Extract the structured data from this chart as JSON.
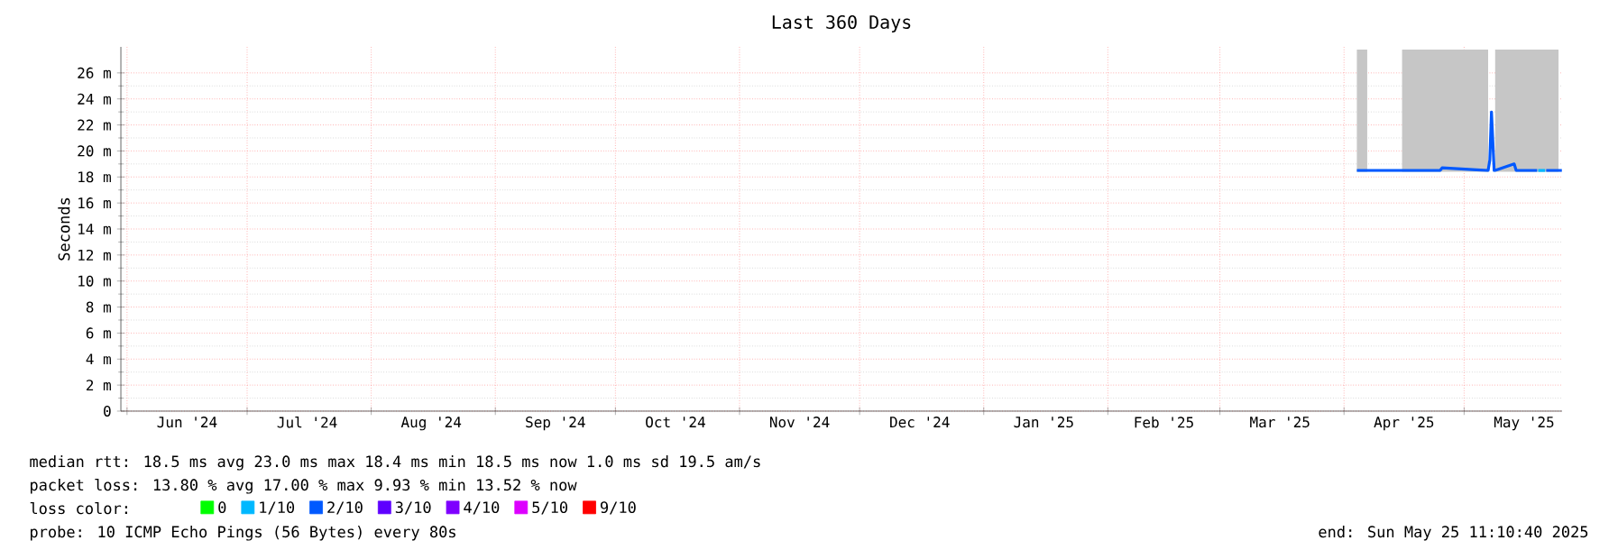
{
  "chart_data": {
    "type": "line",
    "title": "Last 360 Days",
    "ylabel": "Seconds",
    "xlim": [
      "2024-05-30T11:10",
      "2025-05-25T11:10"
    ],
    "ylim": [
      0,
      28
    ],
    "xticks": [
      {
        "value": "2024-06-01",
        "label": null
      },
      {
        "value": "2024-06-16",
        "label": "Jun '24"
      },
      {
        "value": "2024-07-01",
        "label": null
      },
      {
        "value": "2024-07-16",
        "label": "Jul '24"
      },
      {
        "value": "2024-08-01",
        "label": null
      },
      {
        "value": "2024-08-16",
        "label": "Aug '24"
      },
      {
        "value": "2024-09-01",
        "label": null
      },
      {
        "value": "2024-09-16",
        "label": "Sep '24"
      },
      {
        "value": "2024-10-01",
        "label": null
      },
      {
        "value": "2024-10-16",
        "label": "Oct '24"
      },
      {
        "value": "2024-11-01",
        "label": null
      },
      {
        "value": "2024-11-16",
        "label": "Nov '24"
      },
      {
        "value": "2024-12-01",
        "label": null
      },
      {
        "value": "2024-12-16",
        "label": "Dec '24"
      },
      {
        "value": "2025-01-01",
        "label": null
      },
      {
        "value": "2025-01-16",
        "label": "Jan '25"
      },
      {
        "value": "2025-02-01",
        "label": null
      },
      {
        "value": "2025-02-15",
        "label": "Feb '25"
      },
      {
        "value": "2025-03-01",
        "label": null
      },
      {
        "value": "2025-03-16",
        "label": "Mar '25"
      },
      {
        "value": "2025-04-01",
        "label": null
      },
      {
        "value": "2025-04-16",
        "label": "Apr '25"
      },
      {
        "value": "2025-05-01",
        "label": null
      },
      {
        "value": "2025-05-16",
        "label": "May '25"
      }
    ],
    "yticks": [
      0,
      {
        "value": 2,
        "label": "2 m"
      },
      {
        "value": 4,
        "label": "4 m"
      },
      {
        "value": 6,
        "label": "6 m"
      },
      {
        "value": 8,
        "label": "8 m"
      },
      {
        "value": 10,
        "label": "10 m"
      },
      {
        "value": 12,
        "label": "12 m"
      },
      {
        "value": 14,
        "label": "14 m"
      },
      {
        "value": 16,
        "label": "16 m"
      },
      {
        "value": 18,
        "label": "18 m"
      },
      {
        "value": 20,
        "label": "20 m"
      },
      {
        "value": 22,
        "label": "22 m"
      },
      {
        "value": 24,
        "label": "24 m"
      },
      {
        "value": 26,
        "label": "26 m"
      }
    ],
    "grid": true,
    "legend": "bottom",
    "legend_title": "loss color:",
    "series": [
      {
        "name": "0",
        "color": "#00ff00"
      },
      {
        "name": "1/10",
        "color": "#00b8ff",
        "x": [
          "2025-05-19T12:00",
          "2025-05-21T06:00"
        ],
        "values": [
          18.5,
          18.5
        ]
      },
      {
        "name": "2/10",
        "color": "#0059ff",
        "x": [
          "2025-04-04T05:00",
          "2025-04-06T19:00",
          "2025-04-07T00:00",
          "2025-04-15T12:00",
          "2025-04-25T00:00",
          "2025-04-25T12:00",
          "2025-05-07T00:00",
          "2025-05-07T10:00",
          "2025-05-07T20:00",
          "2025-05-08T12:00",
          "2025-05-08T18:00",
          "2025-05-13T12:00",
          "2025-05-14T00:00",
          "2025-05-19T06:00",
          "2025-05-20T08:00",
          "2025-05-21T12:00",
          "2025-05-24T14:00",
          "2025-05-25T10:00"
        ],
        "values": [
          18.5,
          18.5,
          18.5,
          18.5,
          18.5,
          18.7,
          18.5,
          19.3,
          23.0,
          18.5,
          18.5,
          19.0,
          18.5,
          18.5,
          null,
          18.5,
          18.5,
          18.5
        ],
        "lower": [
          18.4,
          18.4,
          null,
          18.4,
          18.4,
          18.4,
          18.4,
          null,
          null,
          null,
          18.4,
          18.4,
          18.4,
          18.4,
          18.4,
          18.4,
          18.4,
          null
        ],
        "upper": [
          27.8,
          27.8,
          null,
          27.8,
          27.8,
          27.8,
          27.8,
          null,
          null,
          null,
          27.8,
          27.8,
          27.8,
          27.8,
          27.8,
          27.8,
          27.8,
          null
        ]
      },
      {
        "name": "3/10",
        "color": "#5e00ff"
      },
      {
        "name": "4/10",
        "color": "#7e00ff"
      },
      {
        "name": "5/10",
        "color": "#dd00ff"
      },
      {
        "name": "9/10",
        "color": "#ff0000"
      }
    ],
    "annotations": [
      "median rtt:  18.5 ms avg  23.0 ms max  18.4 ms min  18.5 ms now  1.0 ms sd  19.5   am/s",
      "packet loss: 13.80 % avg  17.00 % max  9.93 % min  13.52 % now",
      "probe:       10 ICMP Echo Pings (56 Bytes) every 80s",
      "end: Sun May 25 11:10:40 2025"
    ]
  }
}
